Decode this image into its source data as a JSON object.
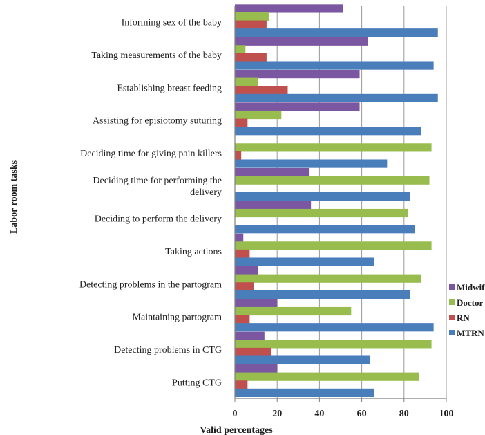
{
  "chart_data": {
    "type": "bar",
    "orientation": "horizontal",
    "xlabel": "Valid percentages",
    "ylabel": "Labor room tasks",
    "xlim": [
      0,
      100
    ],
    "xticks": [
      "0",
      "20",
      "40",
      "60",
      "80",
      "100"
    ],
    "grid": true,
    "legend_position": "right",
    "categories": [
      "Informing sex of the baby",
      "Taking measurements of the baby",
      "Establishing breast feeding",
      "Assisting for episiotomy suturing",
      "Deciding time for giving  pain killers",
      "Deciding time for performing the delivery",
      "Deciding to perform the delivery",
      "Taking actions",
      "Detecting problems in the partogram",
      "Maintaining partogram",
      "Detecting problems in CTG",
      "Putting CTG"
    ],
    "category_lines": [
      [
        "Informing sex of the baby"
      ],
      [
        "Taking measurements of the baby"
      ],
      [
        "Establishing breast feeding"
      ],
      [
        "Assisting for episiotomy suturing"
      ],
      [
        "Deciding time for giving  pain killers"
      ],
      [
        "Deciding time for performing the",
        "delivery"
      ],
      [
        "Deciding to perform the delivery"
      ],
      [
        "Taking actions"
      ],
      [
        "Detecting problems in the partogram"
      ],
      [
        "Maintaining partogram"
      ],
      [
        "Detecting problems in CTG"
      ],
      [
        "Putting CTG"
      ]
    ],
    "series": [
      {
        "name": "Midwife",
        "color": "#7b57a2",
        "values": [
          51,
          63,
          59,
          59,
          0,
          35,
          36,
          4,
          11,
          20,
          14,
          20
        ]
      },
      {
        "name": "Doctor",
        "color": "#98bd4e",
        "values": [
          16,
          5,
          11,
          22,
          93,
          92,
          82,
          93,
          88,
          55,
          93,
          87
        ]
      },
      {
        "name": "RN",
        "color": "#c0504d",
        "values": [
          15,
          15,
          25,
          6,
          3,
          0,
          0,
          7,
          9,
          7,
          17,
          6
        ]
      },
      {
        "name": "MTRN",
        "color": "#4a7ebb",
        "values": [
          96,
          94,
          96,
          88,
          72,
          83,
          85,
          66,
          83,
          94,
          64,
          66
        ]
      }
    ]
  }
}
